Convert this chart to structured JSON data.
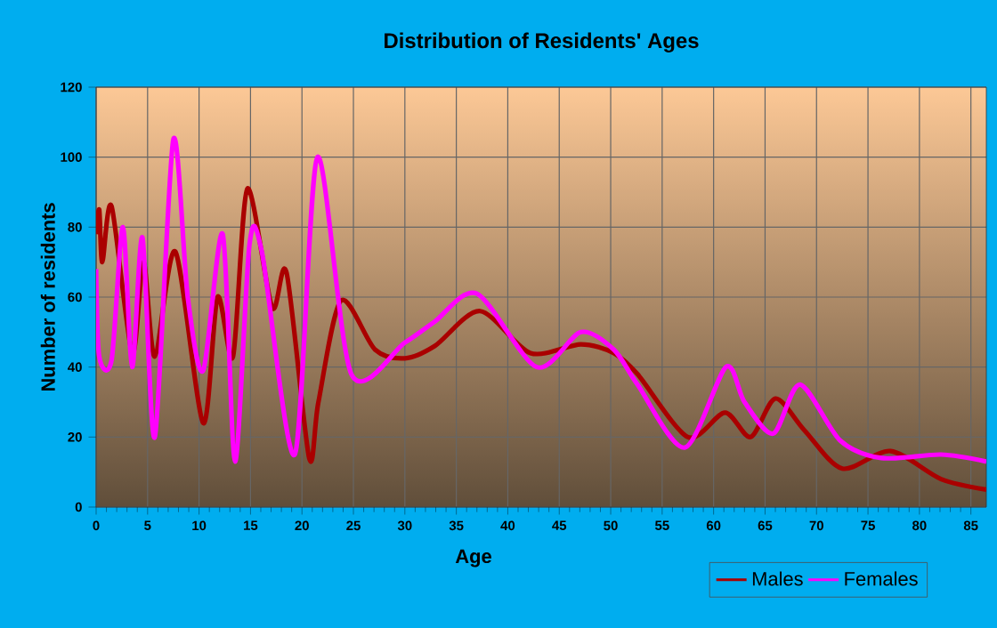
{
  "chart_data": {
    "type": "line",
    "title": "Distribution of Residents' Ages",
    "xlabel": "Age",
    "ylabel": "Number of residents",
    "xlim": [
      0,
      86.5
    ],
    "ylim": [
      0,
      120
    ],
    "xticks": [
      0,
      5,
      10,
      15,
      20,
      25,
      30,
      35,
      40,
      45,
      50,
      55,
      60,
      65,
      70,
      75,
      80,
      85
    ],
    "yticks": [
      0,
      20,
      40,
      60,
      80,
      100,
      120
    ],
    "grid": true,
    "legend": "bottom right",
    "series": [
      {
        "name": "Males",
        "color": "#aa0000",
        "x": [
          0,
          0.3,
          0.6,
          1.5,
          3.5,
          4.6,
          5.7,
          7.7,
          10.4,
          11.8,
          13.3,
          14.7,
          17.1,
          18.5,
          20.7,
          21.6,
          23.8,
          27.1,
          30,
          32.9,
          37.3,
          42.2,
          47.1,
          50.3,
          52.6,
          57.5,
          61.1,
          63.6,
          66,
          68.8,
          72.5,
          77.2,
          82.1,
          86.5
        ],
        "values": [
          78,
          85,
          70,
          86,
          44,
          70,
          43,
          73,
          24,
          60,
          43,
          91,
          57,
          67,
          14,
          30,
          59,
          45,
          42.5,
          46,
          56,
          44,
          46.5,
          44,
          38,
          20,
          27,
          20,
          31,
          22,
          11,
          16,
          8,
          5
        ]
      },
      {
        "name": "Females",
        "color": "#ff00ff",
        "x": [
          0,
          0.3,
          1.5,
          2.6,
          3.5,
          4.5,
          5.7,
          7.5,
          8.9,
          10.4,
          12.3,
          13.5,
          14.9,
          16.1,
          19.3,
          21.5,
          24.8,
          30,
          32.9,
          37,
          42.8,
          47.1,
          50.3,
          52.6,
          57.2,
          61.2,
          63,
          65.8,
          68.4,
          72.3,
          76.3,
          82.1,
          86.5
        ],
        "values": [
          68,
          43,
          42,
          80,
          40,
          77,
          20,
          105,
          60,
          39,
          78,
          13,
          75,
          73,
          15,
          100,
          38,
          47,
          53,
          61,
          40,
          50,
          45,
          35,
          17,
          40,
          30,
          21,
          35,
          19,
          14,
          15,
          13
        ]
      }
    ]
  }
}
